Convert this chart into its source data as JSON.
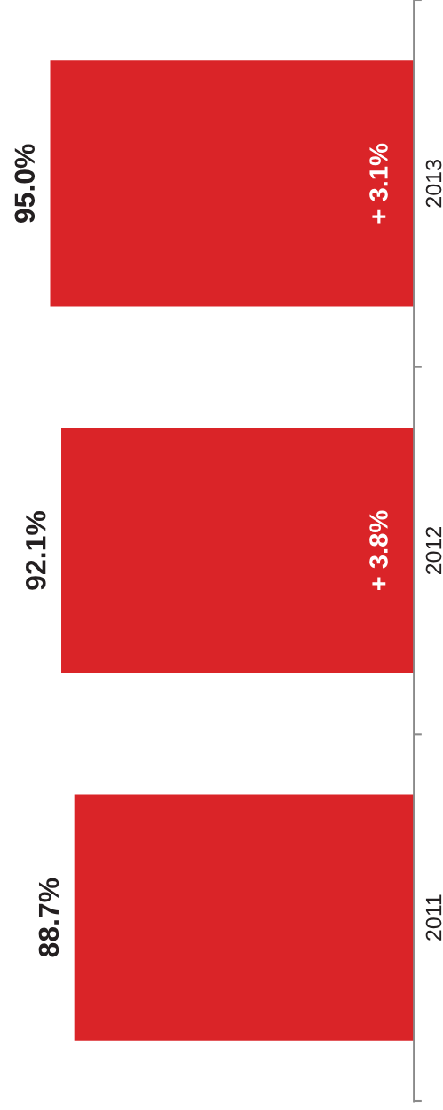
{
  "chart_data": {
    "type": "bar",
    "orientation": "horizontal",
    "categories": [
      "2013",
      "2012",
      "2011"
    ],
    "values": [
      95.0,
      92.1,
      88.7
    ],
    "value_labels": [
      "95.0%",
      "92.1%",
      "88.7%"
    ],
    "color": "#da2428",
    "tick_labels": "y",
    "grid": false,
    "annotations": [
      "+ 3.1%",
      "+ 3.8%"
    ]
  }
}
